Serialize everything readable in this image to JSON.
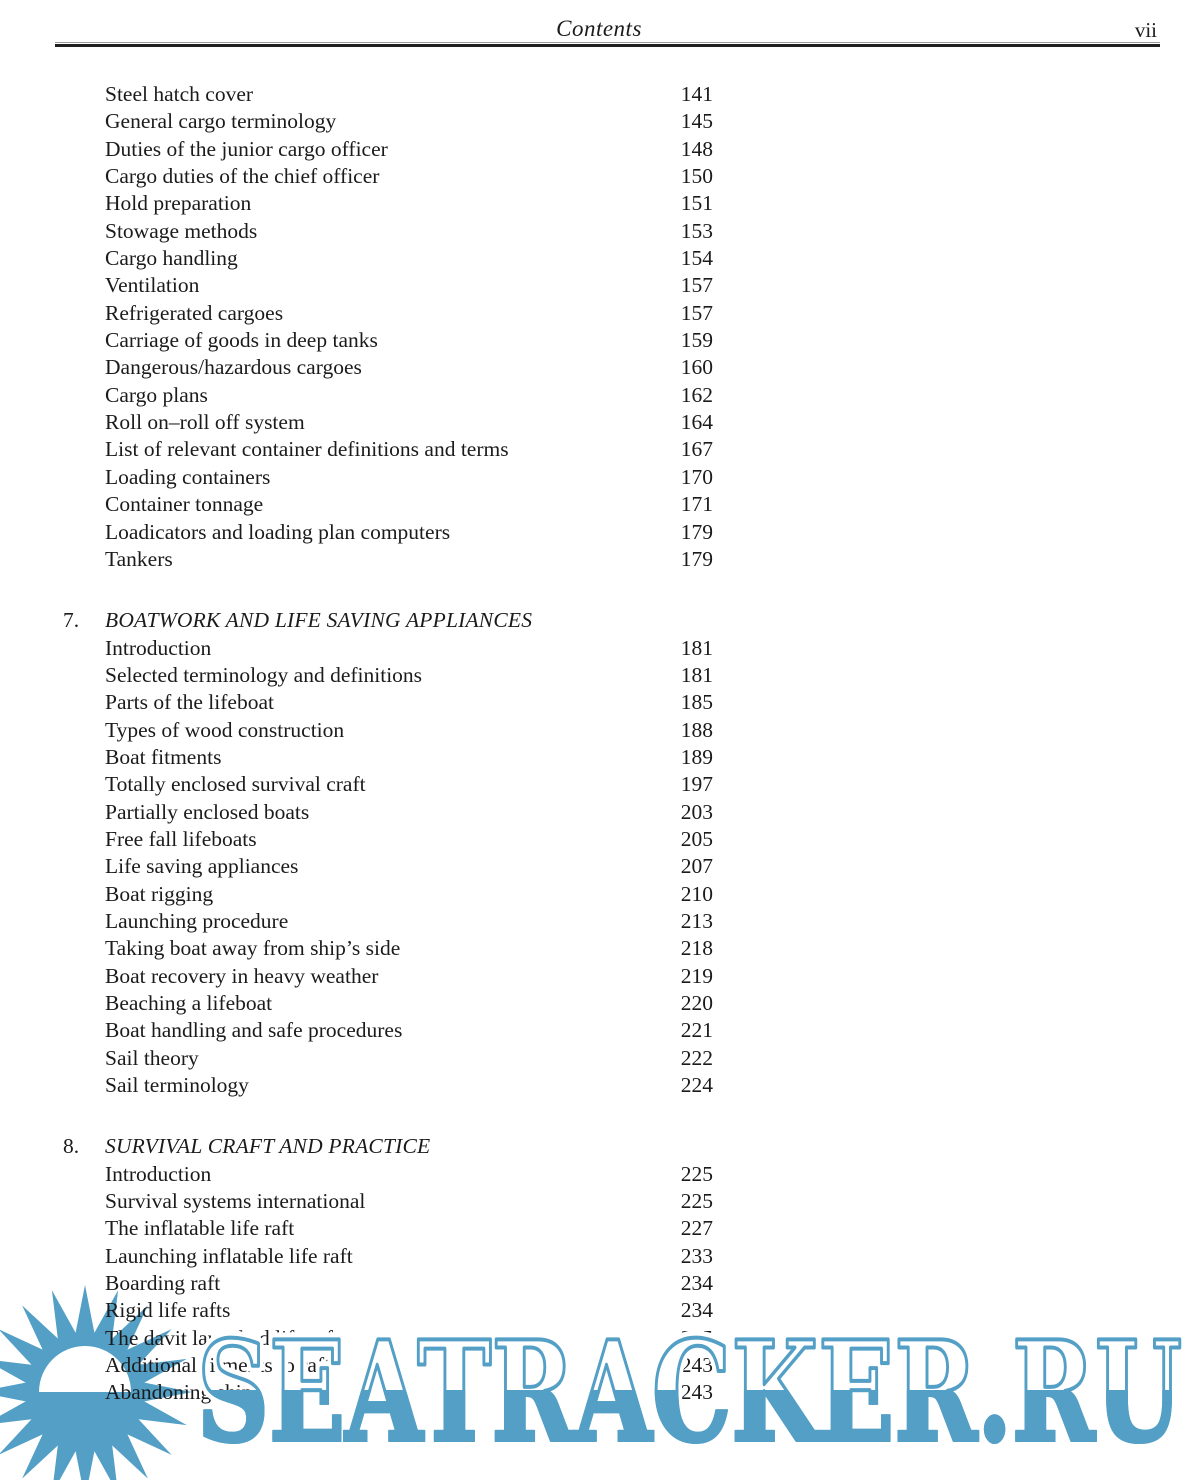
{
  "page": {
    "title": "Contents",
    "page_number": "vii"
  },
  "toc": {
    "sections": [
      {
        "number": "",
        "title": "",
        "items": [
          {
            "label": "Steel hatch cover",
            "page": "141"
          },
          {
            "label": "General cargo terminology",
            "page": "145"
          },
          {
            "label": "Duties of the junior cargo officer",
            "page": "148"
          },
          {
            "label": "Cargo duties of the chief officer",
            "page": "150"
          },
          {
            "label": "Hold preparation",
            "page": "151"
          },
          {
            "label": "Stowage methods",
            "page": "153"
          },
          {
            "label": "Cargo handling",
            "page": "154"
          },
          {
            "label": "Ventilation",
            "page": "157"
          },
          {
            "label": "Refrigerated cargoes",
            "page": "157"
          },
          {
            "label": "Carriage of goods in deep tanks",
            "page": "159"
          },
          {
            "label": "Dangerous/hazardous cargoes",
            "page": "160"
          },
          {
            "label": "Cargo plans",
            "page": "162"
          },
          {
            "label": "Roll on–roll off system",
            "page": "164"
          },
          {
            "label": "List of relevant container definitions and terms",
            "page": "167"
          },
          {
            "label": "Loading containers",
            "page": "170"
          },
          {
            "label": "Container tonnage",
            "page": "171"
          },
          {
            "label": "Loadicators and loading plan computers",
            "page": "179"
          },
          {
            "label": "Tankers",
            "page": "179"
          }
        ]
      },
      {
        "number": "7.",
        "title": "BOATWORK AND LIFE SAVING APPLIANCES",
        "items": [
          {
            "label": "Introduction",
            "page": "181"
          },
          {
            "label": "Selected terminology and definitions",
            "page": "181"
          },
          {
            "label": "Parts of the lifeboat",
            "page": "185"
          },
          {
            "label": "Types of wood construction",
            "page": "188"
          },
          {
            "label": "Boat fitments",
            "page": "189"
          },
          {
            "label": "Totally enclosed survival craft",
            "page": "197"
          },
          {
            "label": "Partially enclosed boats",
            "page": "203"
          },
          {
            "label": "Free fall lifeboats",
            "page": "205"
          },
          {
            "label": "Life saving appliances",
            "page": "207"
          },
          {
            "label": "Boat rigging",
            "page": "210"
          },
          {
            "label": "Launching procedure",
            "page": "213"
          },
          {
            "label": "Taking boat away from ship’s side",
            "page": "218"
          },
          {
            "label": "Boat recovery in heavy weather",
            "page": "219"
          },
          {
            "label": "Beaching a lifeboat",
            "page": "220"
          },
          {
            "label": "Boat handling and safe procedures",
            "page": "221"
          },
          {
            "label": "Sail theory",
            "page": "222"
          },
          {
            "label": "Sail terminology",
            "page": "224"
          }
        ]
      },
      {
        "number": "8.",
        "title": "SURVIVAL CRAFT AND PRACTICE",
        "items": [
          {
            "label": "Introduction",
            "page": "225"
          },
          {
            "label": "Survival systems international",
            "page": "225"
          },
          {
            "label": "The inflatable life raft",
            "page": "227"
          },
          {
            "label": "Launching inflatable life raft",
            "page": "233"
          },
          {
            "label": "Boarding raft",
            "page": "234"
          },
          {
            "label": "Rigid life rafts",
            "page": "234"
          },
          {
            "label": "The davit launched life raft",
            "page": "235"
          },
          {
            "label": "Additional fitments to raft",
            "page": "243"
          },
          {
            "label": "Abandoning ship",
            "page": "243"
          }
        ]
      }
    ]
  },
  "watermark": {
    "text": "SEATRACKER.RU",
    "color": "#539fc6",
    "logo": "sun-starburst"
  }
}
